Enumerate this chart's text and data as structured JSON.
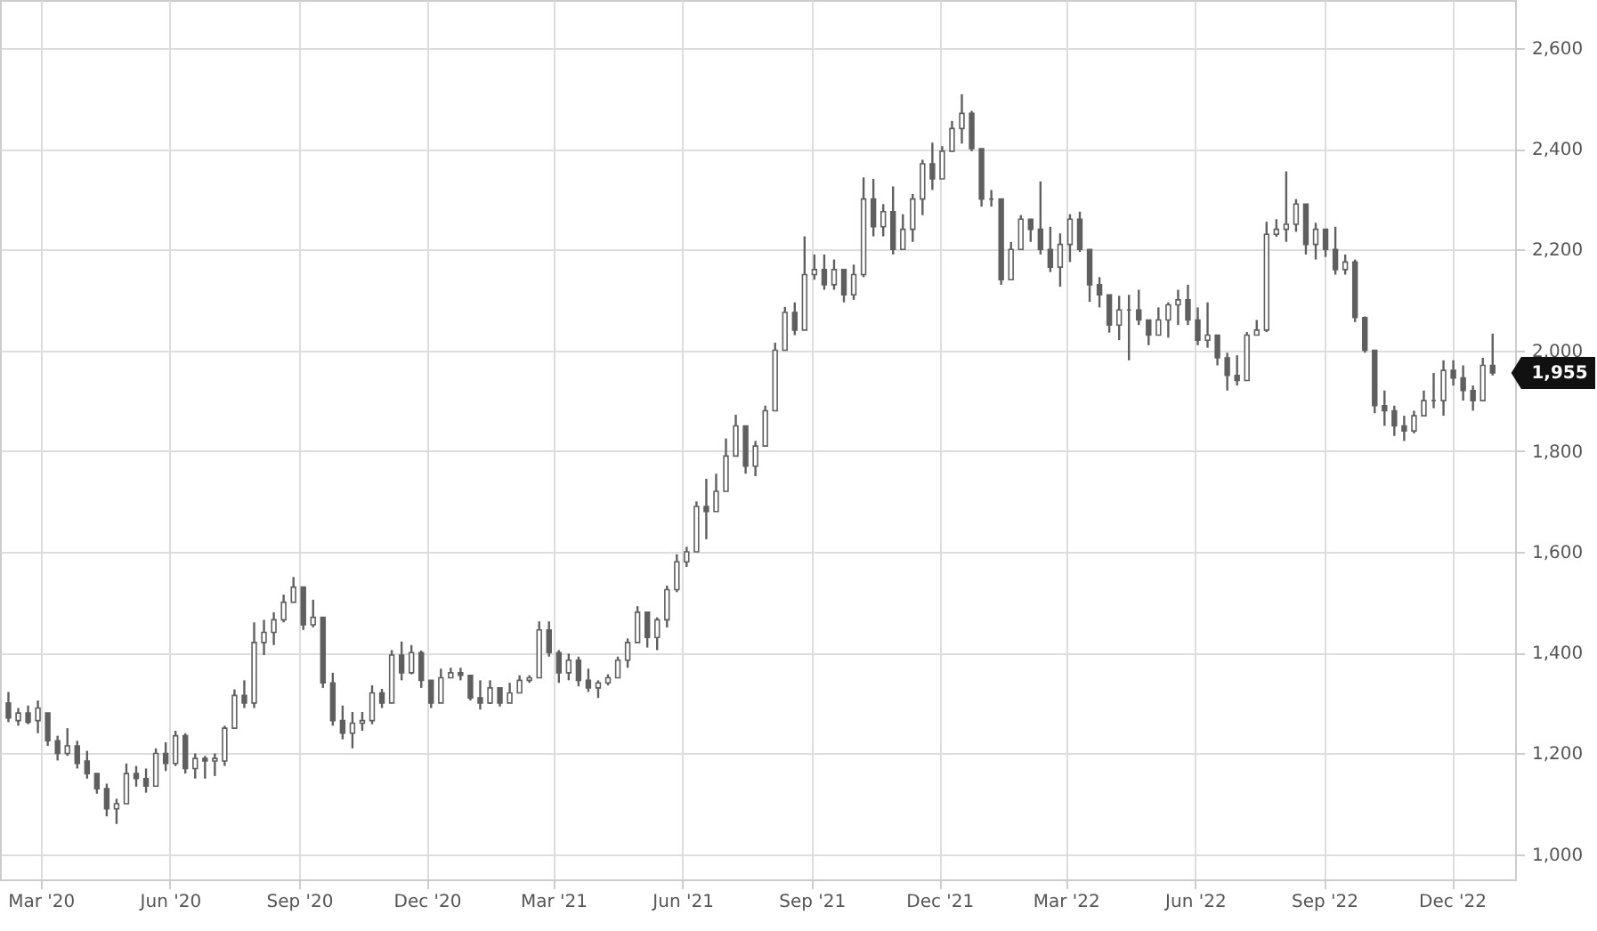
{
  "chart_data": {
    "type": "candlestick",
    "color": "#5f5f5f",
    "grid": true,
    "xlim": [
      "2020-02-01",
      "2023-01-15"
    ],
    "xticks": [
      {
        "value": "2020-03-01",
        "label": "Mar '20"
      },
      {
        "value": "2020-06-01",
        "label": "Jun '20"
      },
      {
        "value": "2020-09-01",
        "label": "Sep '20"
      },
      {
        "value": "2020-12-01",
        "label": "Dec '20"
      },
      {
        "value": "2021-03-01",
        "label": "Mar '21"
      },
      {
        "value": "2021-06-01",
        "label": "Jun '21"
      },
      {
        "value": "2021-09-01",
        "label": "Sep '21"
      },
      {
        "value": "2021-12-01",
        "label": "Dec '21"
      },
      {
        "value": "2022-03-01",
        "label": "Mar '22"
      },
      {
        "value": "2022-06-01",
        "label": "Jun '22"
      },
      {
        "value": "2022-09-01",
        "label": "Sep '22"
      },
      {
        "value": "2022-12-01",
        "label": "Dec '22"
      }
    ],
    "ylim": [
      950,
      2695
    ],
    "yticks": [
      {
        "value": 1000,
        "label": "1,000"
      },
      {
        "value": 1200,
        "label": "1,200"
      },
      {
        "value": 1400,
        "label": "1,400"
      },
      {
        "value": 1600,
        "label": "1,600"
      },
      {
        "value": 1800,
        "label": "1,800"
      },
      {
        "value": 2000,
        "label": "2,000"
      },
      {
        "value": 2200,
        "label": "2,200"
      },
      {
        "value": 2400,
        "label": "2,400"
      },
      {
        "value": 2600,
        "label": "2,600"
      }
    ],
    "annotations": [
      {
        "text": "1,955",
        "x": "2022-12-30",
        "y": 1955
      }
    ],
    "x": [
      "2020-02-07",
      "2020-02-14",
      "2020-02-21",
      "2020-02-28",
      "2020-03-06",
      "2020-03-13",
      "2020-03-20",
      "2020-03-27",
      "2020-04-03",
      "2020-04-10",
      "2020-04-17",
      "2020-04-24",
      "2020-05-01",
      "2020-05-08",
      "2020-05-15",
      "2020-05-22",
      "2020-05-29",
      "2020-06-05",
      "2020-06-12",
      "2020-06-19",
      "2020-06-26",
      "2020-07-03",
      "2020-07-10",
      "2020-07-17",
      "2020-07-24",
      "2020-07-31",
      "2020-08-07",
      "2020-08-14",
      "2020-08-21",
      "2020-08-28",
      "2020-09-04",
      "2020-09-11",
      "2020-09-18",
      "2020-09-25",
      "2020-10-02",
      "2020-10-09",
      "2020-10-16",
      "2020-10-23",
      "2020-10-30",
      "2020-11-06",
      "2020-11-13",
      "2020-11-20",
      "2020-11-27",
      "2020-12-04",
      "2020-12-11",
      "2020-12-18",
      "2020-12-25",
      "2021-01-01",
      "2021-01-08",
      "2021-01-15",
      "2021-01-22",
      "2021-01-29",
      "2021-02-05",
      "2021-02-12",
      "2021-02-19",
      "2021-02-26",
      "2021-03-05",
      "2021-03-12",
      "2021-03-19",
      "2021-03-26",
      "2021-04-02",
      "2021-04-09",
      "2021-04-16",
      "2021-04-23",
      "2021-04-30",
      "2021-05-07",
      "2021-05-14",
      "2021-05-21",
      "2021-05-28",
      "2021-06-04",
      "2021-06-11",
      "2021-06-18",
      "2021-06-25",
      "2021-07-02",
      "2021-07-09",
      "2021-07-16",
      "2021-07-23",
      "2021-07-30",
      "2021-08-06",
      "2021-08-13",
      "2021-08-20",
      "2021-08-27",
      "2021-09-03",
      "2021-09-10",
      "2021-09-17",
      "2021-09-24",
      "2021-10-01",
      "2021-10-08",
      "2021-10-15",
      "2021-10-22",
      "2021-10-29",
      "2021-11-05",
      "2021-11-12",
      "2021-11-19",
      "2021-11-26",
      "2021-12-03",
      "2021-12-10",
      "2021-12-17",
      "2021-12-24",
      "2021-12-31",
      "2022-01-07",
      "2022-01-14",
      "2022-01-21",
      "2022-01-28",
      "2022-02-04",
      "2022-02-11",
      "2022-02-18",
      "2022-02-25",
      "2022-03-04",
      "2022-03-11",
      "2022-03-18",
      "2022-03-25",
      "2022-04-01",
      "2022-04-08",
      "2022-04-15",
      "2022-04-22",
      "2022-04-29",
      "2022-05-06",
      "2022-05-13",
      "2022-05-20",
      "2022-05-27",
      "2022-06-03",
      "2022-06-10",
      "2022-06-17",
      "2022-06-24",
      "2022-07-01",
      "2022-07-08",
      "2022-07-15",
      "2022-07-22",
      "2022-07-29",
      "2022-08-05",
      "2022-08-12",
      "2022-08-19",
      "2022-08-26",
      "2022-09-02",
      "2022-09-09",
      "2022-09-16",
      "2022-09-23",
      "2022-09-30",
      "2022-10-07",
      "2022-10-14",
      "2022-10-21",
      "2022-10-28",
      "2022-11-04",
      "2022-11-11",
      "2022-11-18",
      "2022-11-25",
      "2022-12-02",
      "2022-12-09",
      "2022-12-16",
      "2022-12-23",
      "2022-12-30"
    ],
    "ohlc": [
      [
        1300,
        1322,
        1262,
        1270
      ],
      [
        1265,
        1290,
        1255,
        1280
      ],
      [
        1280,
        1295,
        1258,
        1262
      ],
      [
        1265,
        1305,
        1240,
        1290
      ],
      [
        1280,
        1280,
        1215,
        1225
      ],
      [
        1225,
        1235,
        1186,
        1200
      ],
      [
        1200,
        1250,
        1195,
        1215
      ],
      [
        1215,
        1225,
        1170,
        1180
      ],
      [
        1185,
        1205,
        1150,
        1160
      ],
      [
        1160,
        1160,
        1120,
        1130
      ],
      [
        1130,
        1140,
        1075,
        1090
      ],
      [
        1090,
        1110,
        1060,
        1100
      ],
      [
        1100,
        1180,
        1100,
        1160
      ],
      [
        1160,
        1175,
        1134,
        1150
      ],
      [
        1150,
        1170,
        1122,
        1135
      ],
      [
        1135,
        1210,
        1135,
        1200
      ],
      [
        1200,
        1222,
        1165,
        1180
      ],
      [
        1180,
        1245,
        1175,
        1235
      ],
      [
        1235,
        1240,
        1160,
        1170
      ],
      [
        1170,
        1200,
        1150,
        1190
      ],
      [
        1190,
        1195,
        1150,
        1185
      ],
      [
        1185,
        1200,
        1155,
        1190
      ],
      [
        1185,
        1255,
        1175,
        1250
      ],
      [
        1250,
        1327,
        1250,
        1315
      ],
      [
        1315,
        1345,
        1290,
        1300
      ],
      [
        1300,
        1460,
        1290,
        1420
      ],
      [
        1420,
        1465,
        1395,
        1440
      ],
      [
        1440,
        1480,
        1415,
        1465
      ],
      [
        1465,
        1515,
        1460,
        1500
      ],
      [
        1500,
        1550,
        1500,
        1530
      ],
      [
        1530,
        1530,
        1445,
        1455
      ],
      [
        1455,
        1505,
        1450,
        1470
      ],
      [
        1470,
        1470,
        1330,
        1340
      ],
      [
        1340,
        1360,
        1255,
        1265
      ],
      [
        1265,
        1295,
        1228,
        1240
      ],
      [
        1240,
        1282,
        1210,
        1260
      ],
      [
        1260,
        1282,
        1245,
        1265
      ],
      [
        1265,
        1335,
        1258,
        1320
      ],
      [
        1320,
        1328,
        1290,
        1300
      ],
      [
        1300,
        1405,
        1300,
        1395
      ],
      [
        1395,
        1422,
        1345,
        1360
      ],
      [
        1360,
        1415,
        1357,
        1400
      ],
      [
        1400,
        1404,
        1330,
        1345
      ],
      [
        1345,
        1345,
        1290,
        1300
      ],
      [
        1300,
        1368,
        1300,
        1350
      ],
      [
        1350,
        1370,
        1350,
        1360
      ],
      [
        1360,
        1370,
        1345,
        1355
      ],
      [
        1355,
        1355,
        1305,
        1310
      ],
      [
        1310,
        1345,
        1287,
        1300
      ],
      [
        1300,
        1345,
        1298,
        1330
      ],
      [
        1330,
        1330,
        1293,
        1300
      ],
      [
        1300,
        1340,
        1300,
        1320
      ],
      [
        1320,
        1355,
        1320,
        1345
      ],
      [
        1345,
        1355,
        1340,
        1350
      ],
      [
        1350,
        1462,
        1350,
        1445
      ],
      [
        1445,
        1462,
        1392,
        1400
      ],
      [
        1400,
        1405,
        1340,
        1360
      ],
      [
        1360,
        1398,
        1345,
        1385
      ],
      [
        1385,
        1392,
        1333,
        1345
      ],
      [
        1345,
        1368,
        1322,
        1330
      ],
      [
        1330,
        1345,
        1310,
        1340
      ],
      [
        1340,
        1357,
        1335,
        1350
      ],
      [
        1350,
        1392,
        1350,
        1385
      ],
      [
        1385,
        1428,
        1370,
        1420
      ],
      [
        1420,
        1492,
        1420,
        1480
      ],
      [
        1480,
        1480,
        1410,
        1430
      ],
      [
        1430,
        1470,
        1405,
        1465
      ],
      [
        1465,
        1533,
        1450,
        1525
      ],
      [
        1525,
        1595,
        1520,
        1580
      ],
      [
        1580,
        1610,
        1570,
        1600
      ],
      [
        1600,
        1700,
        1600,
        1690
      ],
      [
        1690,
        1745,
        1625,
        1680
      ],
      [
        1680,
        1755,
        1680,
        1720
      ],
      [
        1720,
        1825,
        1720,
        1790
      ],
      [
        1790,
        1872,
        1790,
        1850
      ],
      [
        1850,
        1850,
        1755,
        1770
      ],
      [
        1770,
        1820,
        1750,
        1810
      ],
      [
        1810,
        1890,
        1810,
        1880
      ],
      [
        1880,
        2015,
        1880,
        2000
      ],
      [
        2000,
        2086,
        2000,
        2075
      ],
      [
        2075,
        2095,
        2030,
        2040
      ],
      [
        2040,
        2226,
        2040,
        2150
      ],
      [
        2150,
        2190,
        2140,
        2160
      ],
      [
        2160,
        2190,
        2120,
        2130
      ],
      [
        2130,
        2180,
        2120,
        2160
      ],
      [
        2160,
        2160,
        2095,
        2110
      ],
      [
        2110,
        2170,
        2100,
        2150
      ],
      [
        2150,
        2343,
        2145,
        2300
      ],
      [
        2300,
        2340,
        2226,
        2245
      ],
      [
        2245,
        2290,
        2226,
        2275
      ],
      [
        2275,
        2325,
        2190,
        2200
      ],
      [
        2200,
        2270,
        2200,
        2240
      ],
      [
        2240,
        2310,
        2215,
        2300
      ],
      [
        2300,
        2378,
        2268,
        2370
      ],
      [
        2370,
        2412,
        2318,
        2340
      ],
      [
        2340,
        2405,
        2340,
        2395
      ],
      [
        2395,
        2455,
        2395,
        2440
      ],
      [
        2440,
        2508,
        2410,
        2470
      ],
      [
        2470,
        2475,
        2395,
        2400
      ],
      [
        2400,
        2400,
        2285,
        2300
      ],
      [
        2300,
        2318,
        2285,
        2300
      ],
      [
        2300,
        2300,
        2130,
        2140
      ],
      [
        2140,
        2215,
        2140,
        2200
      ],
      [
        2200,
        2268,
        2200,
        2260
      ],
      [
        2260,
        2260,
        2215,
        2240
      ],
      [
        2240,
        2335,
        2190,
        2200
      ],
      [
        2200,
        2245,
        2155,
        2165
      ],
      [
        2165,
        2232,
        2126,
        2210
      ],
      [
        2210,
        2270,
        2175,
        2260
      ],
      [
        2260,
        2275,
        2195,
        2200
      ],
      [
        2200,
        2200,
        2096,
        2130
      ],
      [
        2130,
        2145,
        2085,
        2110
      ],
      [
        2110,
        2110,
        2035,
        2050
      ],
      [
        2050,
        2108,
        2020,
        2080
      ],
      [
        2080,
        2110,
        1980,
        2080
      ],
      [
        2080,
        2120,
        2050,
        2060
      ],
      [
        2060,
        2060,
        2010,
        2030
      ],
      [
        2030,
        2085,
        2030,
        2060
      ],
      [
        2060,
        2095,
        2025,
        2090
      ],
      [
        2090,
        2120,
        2050,
        2100
      ],
      [
        2100,
        2130,
        2050,
        2060
      ],
      [
        2060,
        2085,
        2010,
        2020
      ],
      [
        2020,
        2095,
        2005,
        2030
      ],
      [
        2030,
        2030,
        1970,
        1985
      ],
      [
        1985,
        1995,
        1920,
        1950
      ],
      [
        1950,
        1990,
        1930,
        1940
      ],
      [
        1940,
        2036,
        1940,
        2030
      ],
      [
        2030,
        2060,
        2030,
        2040
      ],
      [
        2040,
        2255,
        2036,
        2230
      ],
      [
        2230,
        2260,
        2225,
        2240
      ],
      [
        2240,
        2355,
        2215,
        2250
      ],
      [
        2250,
        2300,
        2235,
        2290
      ],
      [
        2290,
        2290,
        2190,
        2210
      ],
      [
        2210,
        2253,
        2180,
        2240
      ],
      [
        2240,
        2240,
        2185,
        2200
      ],
      [
        2200,
        2245,
        2150,
        2160
      ],
      [
        2160,
        2190,
        2150,
        2175
      ],
      [
        2175,
        2180,
        2056,
        2065
      ],
      [
        2065,
        2067,
        1995,
        2000
      ],
      [
        2000,
        2000,
        1875,
        1890
      ],
      [
        1890,
        1920,
        1850,
        1880
      ],
      [
        1880,
        1890,
        1830,
        1850
      ],
      [
        1850,
        1870,
        1820,
        1840
      ],
      [
        1840,
        1880,
        1835,
        1870
      ],
      [
        1870,
        1920,
        1870,
        1900
      ],
      [
        1900,
        1955,
        1885,
        1900
      ],
      [
        1900,
        1980,
        1870,
        1960
      ],
      [
        1960,
        1980,
        1930,
        1945
      ],
      [
        1945,
        1970,
        1900,
        1920
      ],
      [
        1920,
        1930,
        1880,
        1900
      ],
      [
        1900,
        1985,
        1900,
        1970
      ],
      [
        1970,
        2033,
        1950,
        1955
      ]
    ]
  }
}
